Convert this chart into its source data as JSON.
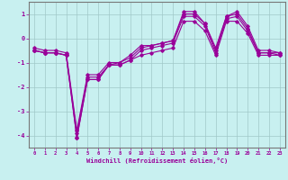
{
  "title": "",
  "xlabel": "Windchill (Refroidissement éolien,°C)",
  "background_color": "#c8f0f0",
  "line_color": "#990099",
  "grid_color": "#a0c8c8",
  "x_hours": [
    0,
    1,
    2,
    3,
    4,
    5,
    6,
    7,
    8,
    9,
    10,
    11,
    12,
    13,
    14,
    15,
    16,
    17,
    18,
    19,
    20,
    21,
    22,
    23
  ],
  "line1": [
    -0.5,
    -0.6,
    -0.6,
    -0.7,
    -4.1,
    -1.7,
    -1.7,
    -1.1,
    -1.1,
    -0.9,
    -0.7,
    -0.6,
    -0.5,
    -0.4,
    0.7,
    0.7,
    0.3,
    -0.7,
    0.7,
    0.7,
    0.2,
    -0.7,
    -0.7,
    -0.7
  ],
  "line2": [
    -0.5,
    -0.6,
    -0.6,
    -0.7,
    -4.1,
    -1.7,
    -1.7,
    -1.1,
    -1.1,
    -0.9,
    -0.5,
    -0.4,
    -0.3,
    -0.2,
    0.9,
    0.9,
    0.5,
    -0.6,
    0.8,
    0.9,
    0.3,
    -0.6,
    -0.6,
    -0.7
  ],
  "line3": [
    -0.5,
    -0.6,
    -0.6,
    -0.7,
    -3.9,
    -1.6,
    -1.6,
    -1.1,
    -1.0,
    -0.8,
    -0.4,
    -0.3,
    -0.2,
    -0.1,
    1.0,
    1.0,
    0.6,
    -0.5,
    0.9,
    1.0,
    0.4,
    -0.6,
    -0.6,
    -0.6
  ],
  "line4": [
    -0.4,
    -0.5,
    -0.5,
    -0.6,
    -3.8,
    -1.5,
    -1.5,
    -1.0,
    -1.0,
    -0.7,
    -0.3,
    -0.3,
    -0.2,
    -0.1,
    1.1,
    1.1,
    0.6,
    -0.4,
    0.9,
    1.1,
    0.5,
    -0.5,
    -0.5,
    -0.6
  ],
  "ylim": [
    -4.5,
    1.5
  ],
  "yticks": [
    1,
    0,
    -1,
    -2,
    -3,
    -4
  ],
  "xlim": [
    -0.5,
    23.5
  ]
}
